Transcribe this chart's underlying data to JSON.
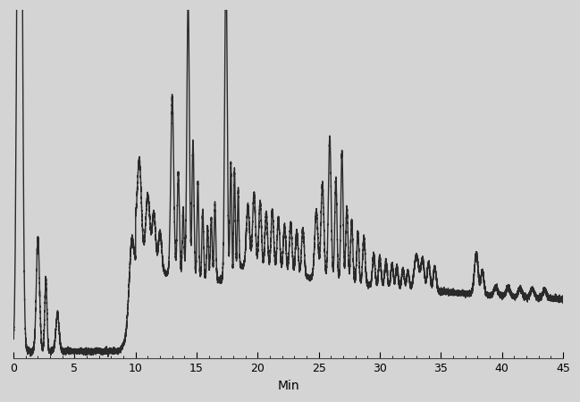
{
  "xlim": [
    0,
    45
  ],
  "ylim": [
    -0.02,
    1.0
  ],
  "xlabel": "Min",
  "xlabel_fontsize": 10,
  "tick_fontsize": 9,
  "line_color": "#2a2a2a",
  "line_width": 1.0,
  "bg_color": "#d4d4d4",
  "fig_bg_color": "#d4d4d4"
}
